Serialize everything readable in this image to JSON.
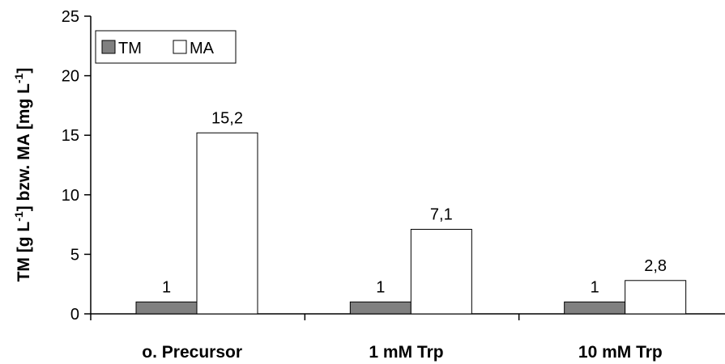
{
  "chart_data": {
    "type": "bar",
    "categories": [
      "o. Precursor",
      "1 mM Trp",
      "10 mM Trp"
    ],
    "series": [
      {
        "name": "TM",
        "values": [
          1,
          1,
          1
        ],
        "labels": [
          "1",
          "1",
          "1"
        ],
        "color": "#808080"
      },
      {
        "name": "MA",
        "values": [
          15.2,
          7.1,
          2.8
        ],
        "labels": [
          "15,2",
          "7,1",
          "2,8"
        ],
        "color": "#ffffff"
      }
    ],
    "ylabel_parts": {
      "p1": "TM [g L",
      "s1": "-1",
      "p2": "] bzw. MA [mg L",
      "s2": "-1",
      "p3": "]"
    },
    "ylim": [
      0,
      25
    ],
    "yticks": [
      0,
      5,
      10,
      15,
      20,
      25
    ],
    "ytick_labels": [
      "0",
      "5",
      "10",
      "15",
      "20",
      "25"
    ],
    "grid": false,
    "legend_position": "top-left"
  }
}
